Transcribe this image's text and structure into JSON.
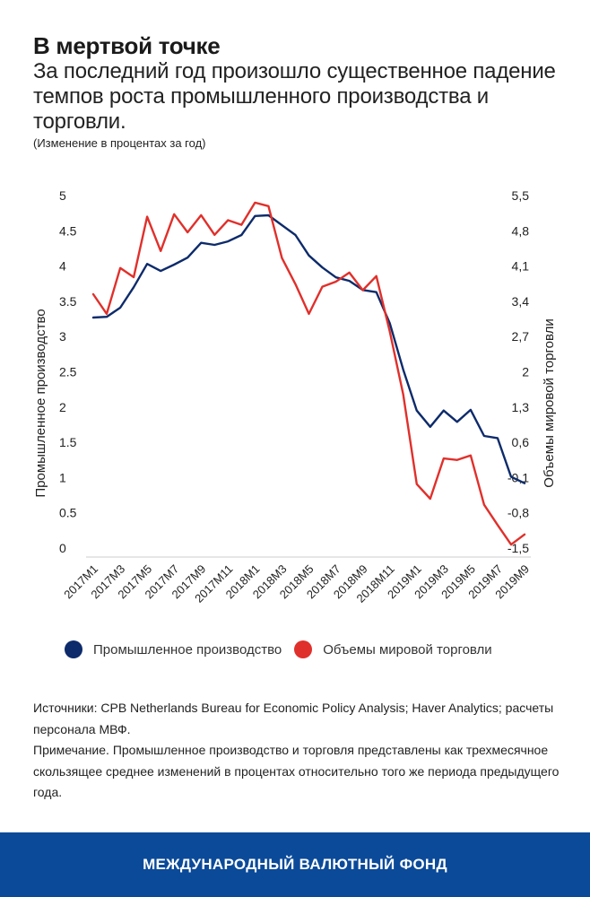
{
  "header": {
    "title": "В мертвой точке",
    "subtitle": "За последний год произошло существенное падение темпов роста промышленного производства и торговли.",
    "units": "(Изменение в процентах за год)"
  },
  "colors": {
    "industrial": "#0d2b6b",
    "trade": "#e0302b",
    "footer_bg": "#0b4a99"
  },
  "chart_data": {
    "type": "line",
    "title": "В мертвой точке",
    "ylabel_left": "Промышленное производство",
    "ylabel_right": "Объемы мировой торговли",
    "ylim_left": [
      0,
      5
    ],
    "yticks_left": [
      "0",
      "0.5",
      "1",
      "1.5",
      "2",
      "2.5",
      "3",
      "3.5",
      "4",
      "4.5",
      "5"
    ],
    "ylim_right": [
      -1.5,
      5.5
    ],
    "yticks_right": [
      "-1,5",
      "-0,8",
      "-0,1",
      "0,6",
      "1,3",
      "2",
      "2,7",
      "3,4",
      "4,1",
      "4,8",
      "5,5"
    ],
    "grid": false,
    "legend_position": "bottom",
    "x": [
      "2017M1",
      "2017M2",
      "2017M3",
      "2017M4",
      "2017M5",
      "2017M6",
      "2017M7",
      "2017M8",
      "2017M9",
      "2017M10",
      "2017M11",
      "2017M12",
      "2018M1",
      "2018M2",
      "2018M3",
      "2018M4",
      "2018M5",
      "2018M6",
      "2018M7",
      "2018M8",
      "2018M9",
      "2018M10",
      "2018M11",
      "2018M12",
      "2019M1",
      "2019M2",
      "2019M3",
      "2019M4",
      "2019M5",
      "2019M6",
      "2019M7",
      "2019M8",
      "2019M9"
    ],
    "xtick_labels": [
      "2017M1",
      "2017M3",
      "2017M5",
      "2017M7",
      "2017M9",
      "2017M11",
      "2018M1",
      "2018M3",
      "2018M5",
      "2018M7",
      "2018M9",
      "2018M11",
      "2019M1",
      "2019M3",
      "2019M5",
      "2019M7",
      "2019M9"
    ],
    "series": [
      {
        "name": "Промышленное производство",
        "axis": "left",
        "values": [
          3.27,
          3.28,
          3.41,
          3.7,
          4.03,
          3.93,
          4.02,
          4.12,
          4.33,
          4.3,
          4.35,
          4.44,
          4.71,
          4.72,
          4.58,
          4.44,
          4.15,
          3.98,
          3.84,
          3.79,
          3.66,
          3.63,
          3.19,
          2.53,
          1.95,
          1.72,
          1.95,
          1.79,
          1.96,
          1.59,
          1.56,
          1.01,
          0.92
        ]
      },
      {
        "name": "Объемы мировой торговли",
        "axis": "right",
        "values": [
          3.54,
          3.15,
          4.06,
          3.88,
          5.08,
          4.4,
          5.13,
          4.77,
          5.11,
          4.72,
          5.01,
          4.92,
          5.36,
          5.29,
          4.26,
          3.74,
          3.15,
          3.69,
          3.79,
          3.97,
          3.62,
          3.9,
          2.8,
          1.55,
          -0.23,
          -0.52,
          0.28,
          0.25,
          0.34,
          -0.64,
          -1.04,
          -1.43,
          -1.23
        ]
      }
    ]
  },
  "legend": {
    "items": [
      {
        "label": "Промышленное производство"
      },
      {
        "label": "Объемы мировой торговли"
      }
    ]
  },
  "notes": {
    "sources": "Источники: CPB Netherlands Bureau for Economic Policy Analysis; Haver Analytics; расчеты персонала МВФ.",
    "note": "Примечание. Промышленное производство и торговля представлены как трехмесячное скользящее среднее изменений в процентах относительно того же периода предыдущего года."
  },
  "footer": {
    "label": "МЕЖДУНАРОДНЫЙ ВАЛЮТНЫЙ ФОНД"
  }
}
